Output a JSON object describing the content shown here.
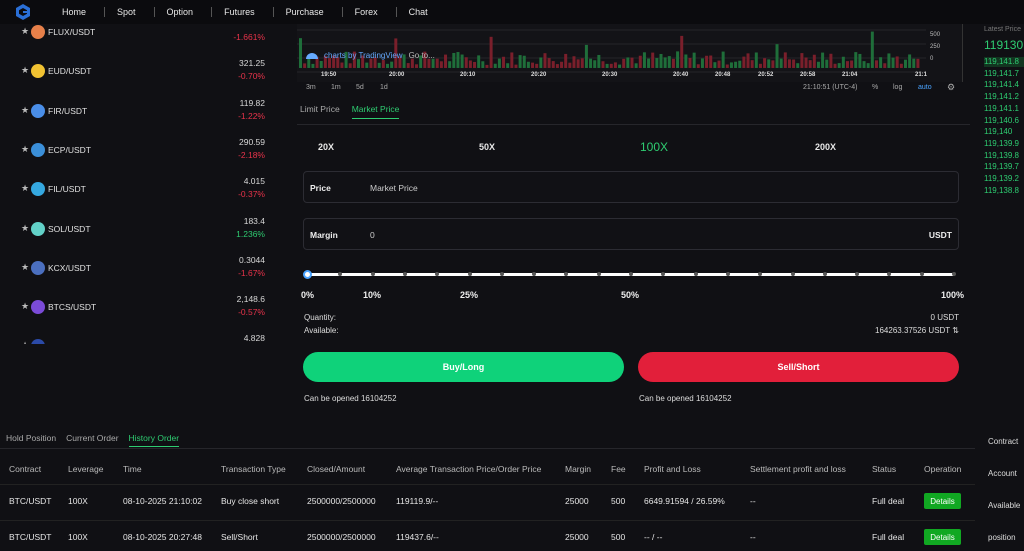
{
  "nav": {
    "items": [
      "Home",
      "Spot",
      "Option",
      "Futures",
      "Purchase",
      "Forex",
      "Chat"
    ]
  },
  "pairs": [
    {
      "name": "FLUX/USDT",
      "price": "",
      "change": "-1.661%",
      "up": false,
      "color": "#e7804a"
    },
    {
      "name": "EUD/USDT",
      "price": "321.25",
      "change": "-0.70%",
      "up": false,
      "color": "#f1c232"
    },
    {
      "name": "FIR/USDT",
      "price": "119.82",
      "change": "-1.22%",
      "up": false,
      "color": "#4a8ee8"
    },
    {
      "name": "ECP/USDT",
      "price": "290.59",
      "change": "-2.18%",
      "up": false,
      "color": "#3b8fd9"
    },
    {
      "name": "FIL/USDT",
      "price": "4.015",
      "change": "-0.37%",
      "up": false,
      "color": "#35a8e0"
    },
    {
      "name": "SOL/USDT",
      "price": "183.4",
      "change": "1.236%",
      "up": true,
      "color": "#62d1c8"
    },
    {
      "name": "KCX/USDT",
      "price": "0.3044",
      "change": "-1.67%",
      "up": false,
      "color": "#4b6fbf"
    },
    {
      "name": "BTCS/USDT",
      "price": "2,148.6",
      "change": "-0.57%",
      "up": false,
      "color": "#7b4bd8"
    },
    {
      "name": "",
      "price": "4.828",
      "change": "",
      "up": false,
      "color": "#2b4aa8"
    }
  ],
  "chart": {
    "legend": "charts by TradingView",
    "goto": "Go to...",
    "times": [
      "19:50",
      "20:00",
      "20:10",
      "20:20",
      "20:30",
      "20:40",
      "20:48",
      "20:52",
      "20:58",
      "21:04",
      "21:1"
    ],
    "volume_ticks": [
      "500",
      "250",
      "0"
    ],
    "intervals": [
      "3m",
      "1m",
      "5d",
      "1d"
    ],
    "clock": "21:10:51 (UTC-4)",
    "opts": [
      "%",
      "log",
      "auto"
    ]
  },
  "order_tabs": [
    "Limit Price",
    "Market Price"
  ],
  "leverage": [
    "20X",
    "50X",
    "100X",
    "200X"
  ],
  "price_field": {
    "label": "Price",
    "value": "Market Price"
  },
  "margin_field": {
    "label": "Margin",
    "value": "0",
    "unit": "USDT"
  },
  "percents": [
    "0%",
    "10%",
    "25%",
    "50%",
    "100%"
  ],
  "slider_value": 0,
  "quantity_label": "Quantity:",
  "quantity_value": "0 USDT",
  "available_label": "Available:",
  "available_value": "164263.37526 USDT",
  "buy_label": "Buy/Long",
  "sell_label": "Sell/Short",
  "can_open_buy": "Can be opened 16104252",
  "can_open_sell": "Can be opened 16104252",
  "orderbook": {
    "header": "Latest Price",
    "latest": "119130",
    "rows": [
      "119,141.8",
      "119,141.7",
      "119,141.4",
      "119,141.2",
      "119,141.1",
      "119,140.6",
      "119,140",
      "119,139.9",
      "119,139.8",
      "119,139.7",
      "119,139.2",
      "119,138.8"
    ]
  },
  "history_tabs": [
    "Hold Position",
    "Current Order",
    "History Order"
  ],
  "columns": [
    "Contract",
    "Leverage",
    "Time",
    "Transaction Type",
    "Closed/Amount",
    "Average Transaction Price/Order Price",
    "Margin",
    "Fee",
    "Profit and Loss",
    "Settlement profit and loss",
    "Status",
    "Operation"
  ],
  "rows": [
    {
      "contract": "BTC/USDT",
      "leverage": "100X",
      "time": "08-10-2025 21:10:02",
      "type": "Buy close short",
      "closed": "2500000/2500000",
      "avg": "119119.9/--",
      "margin": "25000",
      "fee": "500",
      "pnl": "6649.91594 / 26.59%",
      "settle": "--",
      "status": "Full deal",
      "op": "Details"
    },
    {
      "contract": "BTC/USDT",
      "leverage": "100X",
      "time": "08-10-2025 20:27:48",
      "type": "Sell/Short",
      "closed": "2500000/2500000",
      "avg": "119437.6/--",
      "margin": "25000",
      "fee": "500",
      "pnl": "-- / --",
      "settle": "--",
      "status": "Full deal",
      "op": "Details"
    }
  ],
  "right_panel": [
    "Contract",
    "Account",
    "Available",
    "position"
  ],
  "colors": {
    "green": "#2ecc71",
    "red": "#e8334a",
    "buy": "#0fd27a",
    "sell": "#e21f3a"
  }
}
